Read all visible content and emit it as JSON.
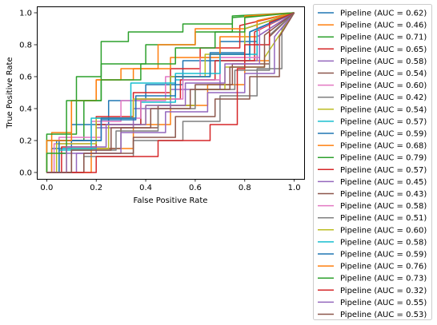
{
  "chart_data": {
    "type": "line",
    "xlabel": "False Positive Rate",
    "ylabel": "True Positive Rate",
    "xlim": [
      -0.04,
      1.04
    ],
    "ylim": [
      -0.04,
      1.04
    ],
    "xticks": [
      "0.0",
      "0.2",
      "0.4",
      "0.6",
      "0.8",
      "1.0"
    ],
    "yticks": [
      "0.0",
      "0.2",
      "0.4",
      "0.6",
      "0.8",
      "1.0"
    ],
    "grid": false,
    "legend_position": "outside-right",
    "series": [
      {
        "name": "Pipeline (AUC = 0.62)",
        "color": "#1f77b4",
        "x": [
          0,
          0.02,
          0.02,
          0.1,
          0.1,
          0.25,
          0.25,
          0.4,
          0.4,
          0.55,
          0.55,
          0.7,
          0.7,
          0.85,
          0.85,
          1
        ],
        "y": [
          0,
          0,
          0.15,
          0.15,
          0.3,
          0.3,
          0.45,
          0.45,
          0.55,
          0.55,
          0.7,
          0.7,
          0.82,
          0.82,
          0.95,
          1
        ]
      },
      {
        "name": "Pipeline (AUC = 0.46)",
        "color": "#ff7f0e",
        "x": [
          0,
          0.18,
          0.18,
          0.35,
          0.35,
          0.5,
          0.5,
          0.65,
          0.65,
          0.8,
          0.8,
          0.9,
          0.9,
          1
        ],
        "y": [
          0,
          0,
          0.15,
          0.15,
          0.3,
          0.3,
          0.42,
          0.42,
          0.55,
          0.55,
          0.7,
          0.7,
          0.9,
          1
        ]
      },
      {
        "name": "Pipeline (AUC = 0.71)",
        "color": "#2ca02c",
        "x": [
          0,
          0,
          0.15,
          0.15,
          0.22,
          0.22,
          0.4,
          0.4,
          0.6,
          0.6,
          0.75,
          0.75,
          1
        ],
        "y": [
          0,
          0.2,
          0.2,
          0.45,
          0.45,
          0.68,
          0.68,
          0.8,
          0.8,
          0.88,
          0.88,
          0.97,
          1
        ]
      },
      {
        "name": "Pipeline (AUC = 0.65)",
        "color": "#d62728",
        "x": [
          0,
          0.05,
          0.05,
          0.2,
          0.2,
          0.35,
          0.35,
          0.5,
          0.5,
          0.62,
          0.62,
          0.78,
          0.78,
          1
        ],
        "y": [
          0,
          0,
          0.2,
          0.2,
          0.35,
          0.35,
          0.5,
          0.5,
          0.65,
          0.65,
          0.78,
          0.78,
          0.92,
          1
        ]
      },
      {
        "name": "Pipeline (AUC = 0.58)",
        "color": "#9467bd",
        "x": [
          0,
          0.05,
          0.05,
          0.2,
          0.2,
          0.35,
          0.35,
          0.5,
          0.5,
          0.7,
          0.7,
          0.85,
          0.85,
          1
        ],
        "y": [
          0,
          0,
          0.12,
          0.12,
          0.28,
          0.28,
          0.4,
          0.4,
          0.52,
          0.52,
          0.7,
          0.7,
          0.85,
          1
        ]
      },
      {
        "name": "Pipeline (AUC = 0.54)",
        "color": "#8c564b",
        "x": [
          0,
          0.1,
          0.1,
          0.3,
          0.3,
          0.45,
          0.45,
          0.6,
          0.6,
          0.75,
          0.75,
          0.9,
          0.9,
          1
        ],
        "y": [
          0,
          0,
          0.15,
          0.15,
          0.28,
          0.28,
          0.42,
          0.42,
          0.55,
          0.55,
          0.68,
          0.68,
          0.85,
          1
        ]
      },
      {
        "name": "Pipeline (AUC = 0.60)",
        "color": "#e377c2",
        "x": [
          0,
          0.03,
          0.03,
          0.18,
          0.18,
          0.3,
          0.3,
          0.48,
          0.48,
          0.62,
          0.62,
          0.8,
          0.8,
          1
        ],
        "y": [
          0,
          0,
          0.18,
          0.18,
          0.32,
          0.32,
          0.45,
          0.45,
          0.6,
          0.6,
          0.72,
          0.72,
          0.9,
          1
        ]
      },
      {
        "name": "Pipeline (AUC = 0.42)",
        "color": "#7f7f7f",
        "x": [
          0,
          0.15,
          0.15,
          0.35,
          0.35,
          0.55,
          0.55,
          0.7,
          0.7,
          0.85,
          0.85,
          0.95,
          0.95,
          1
        ],
        "y": [
          0,
          0,
          0.1,
          0.1,
          0.2,
          0.2,
          0.32,
          0.32,
          0.48,
          0.48,
          0.65,
          0.65,
          0.9,
          1
        ]
      },
      {
        "name": "Pipeline (AUC = 0.54)",
        "color": "#bcbd22",
        "x": [
          0,
          0.08,
          0.08,
          0.25,
          0.25,
          0.4,
          0.4,
          0.6,
          0.6,
          0.72,
          0.72,
          0.88,
          0.88,
          1
        ],
        "y": [
          0,
          0,
          0.15,
          0.15,
          0.3,
          0.3,
          0.42,
          0.42,
          0.52,
          0.52,
          0.66,
          0.66,
          0.72,
          1
        ]
      },
      {
        "name": "Pipeline (AUC = 0.57)",
        "color": "#17becf",
        "x": [
          0,
          0.05,
          0.05,
          0.2,
          0.2,
          0.38,
          0.38,
          0.52,
          0.52,
          0.68,
          0.68,
          0.82,
          0.82,
          1
        ],
        "y": [
          0,
          0,
          0.15,
          0.15,
          0.3,
          0.3,
          0.44,
          0.44,
          0.58,
          0.58,
          0.7,
          0.7,
          0.88,
          1
        ]
      },
      {
        "name": "Pipeline (AUC = 0.59)",
        "color": "#1f77b4",
        "x": [
          0,
          0.04,
          0.04,
          0.22,
          0.22,
          0.36,
          0.36,
          0.5,
          0.5,
          0.66,
          0.66,
          0.8,
          0.8,
          1
        ],
        "y": [
          0,
          0,
          0.2,
          0.2,
          0.33,
          0.33,
          0.46,
          0.46,
          0.6,
          0.6,
          0.75,
          0.75,
          0.9,
          1
        ]
      },
      {
        "name": "Pipeline (AUC = 0.68)",
        "color": "#ff7f0e",
        "x": [
          0,
          0.02,
          0.02,
          0.1,
          0.1,
          0.2,
          0.2,
          0.35,
          0.35,
          0.5,
          0.5,
          0.7,
          0.7,
          0.85,
          0.85,
          1
        ],
        "y": [
          0,
          0,
          0.25,
          0.25,
          0.45,
          0.45,
          0.58,
          0.58,
          0.65,
          0.65,
          0.72,
          0.72,
          0.85,
          0.85,
          0.95,
          1
        ]
      },
      {
        "name": "Pipeline (AUC = 0.79)",
        "color": "#2ca02c",
        "x": [
          0,
          0,
          0.12,
          0.12,
          0.22,
          0.22,
          0.33,
          0.33,
          0.55,
          0.55,
          0.75,
          0.75,
          1
        ],
        "y": [
          0,
          0.24,
          0.24,
          0.6,
          0.6,
          0.82,
          0.82,
          0.88,
          0.88,
          0.93,
          0.93,
          0.98,
          1
        ]
      },
      {
        "name": "Pipeline (AUC = 0.57)",
        "color": "#d62728",
        "x": [
          0,
          0.06,
          0.06,
          0.2,
          0.2,
          0.38,
          0.38,
          0.54,
          0.54,
          0.68,
          0.68,
          0.84,
          0.84,
          1
        ],
        "y": [
          0,
          0,
          0.16,
          0.16,
          0.3,
          0.3,
          0.46,
          0.46,
          0.58,
          0.58,
          0.7,
          0.7,
          0.88,
          1
        ]
      },
      {
        "name": "Pipeline (AUC = 0.45)",
        "color": "#9467bd",
        "x": [
          0,
          0.12,
          0.12,
          0.3,
          0.3,
          0.48,
          0.48,
          0.65,
          0.65,
          0.8,
          0.8,
          0.92,
          0.92,
          1
        ],
        "y": [
          0,
          0,
          0.12,
          0.12,
          0.25,
          0.25,
          0.38,
          0.38,
          0.5,
          0.5,
          0.62,
          0.62,
          0.85,
          1
        ]
      },
      {
        "name": "Pipeline (AUC = 0.43)",
        "color": "#8c564b",
        "x": [
          0,
          0.15,
          0.15,
          0.35,
          0.35,
          0.52,
          0.52,
          0.68,
          0.68,
          0.82,
          0.82,
          0.94,
          0.94,
          1
        ],
        "y": [
          0,
          0,
          0.12,
          0.12,
          0.22,
          0.22,
          0.35,
          0.35,
          0.46,
          0.46,
          0.6,
          0.6,
          0.85,
          1
        ]
      },
      {
        "name": "Pipeline (AUC = 0.58)",
        "color": "#e377c2",
        "x": [
          0,
          0.05,
          0.05,
          0.22,
          0.22,
          0.38,
          0.38,
          0.55,
          0.55,
          0.7,
          0.7,
          0.86,
          0.86,
          1
        ],
        "y": [
          0,
          0,
          0.22,
          0.22,
          0.34,
          0.34,
          0.46,
          0.46,
          0.58,
          0.58,
          0.72,
          0.72,
          0.9,
          1
        ]
      },
      {
        "name": "Pipeline (AUC = 0.51)",
        "color": "#7f7f7f",
        "x": [
          0,
          0.1,
          0.1,
          0.28,
          0.28,
          0.45,
          0.45,
          0.6,
          0.6,
          0.76,
          0.76,
          0.9,
          0.9,
          1
        ],
        "y": [
          0,
          0,
          0.14,
          0.14,
          0.26,
          0.26,
          0.4,
          0.4,
          0.52,
          0.52,
          0.64,
          0.64,
          0.86,
          1
        ]
      },
      {
        "name": "Pipeline (AUC = 0.60)",
        "color": "#bcbd22",
        "x": [
          0,
          0.04,
          0.04,
          0.2,
          0.2,
          0.35,
          0.35,
          0.5,
          0.5,
          0.64,
          0.64,
          0.8,
          0.8,
          1
        ],
        "y": [
          0,
          0,
          0.18,
          0.18,
          0.34,
          0.34,
          0.46,
          0.46,
          0.6,
          0.6,
          0.74,
          0.74,
          0.9,
          1
        ]
      },
      {
        "name": "Pipeline (AUC = 0.58)",
        "color": "#17becf",
        "x": [
          0,
          0.05,
          0.05,
          0.18,
          0.18,
          0.34,
          0.34,
          0.52,
          0.52,
          0.7,
          0.7,
          0.85,
          0.85,
          1
        ],
        "y": [
          0,
          0,
          0.14,
          0.14,
          0.34,
          0.34,
          0.56,
          0.56,
          0.62,
          0.62,
          0.74,
          0.74,
          0.9,
          1
        ]
      },
      {
        "name": "Pipeline (AUC = 0.59)",
        "color": "#1f77b4",
        "x": [
          0,
          0.05,
          0.05,
          0.22,
          0.22,
          0.36,
          0.36,
          0.52,
          0.52,
          0.66,
          0.66,
          0.82,
          0.82,
          1
        ],
        "y": [
          0,
          0,
          0.2,
          0.2,
          0.34,
          0.34,
          0.48,
          0.48,
          0.6,
          0.6,
          0.74,
          0.74,
          0.88,
          1
        ]
      },
      {
        "name": "Pipeline (AUC = 0.76)",
        "color": "#ff7f0e",
        "x": [
          0,
          0,
          0.1,
          0.1,
          0.2,
          0.2,
          0.3,
          0.3,
          0.45,
          0.45,
          0.6,
          0.6,
          0.8,
          0.8,
          1
        ],
        "y": [
          0,
          0.2,
          0.2,
          0.45,
          0.45,
          0.58,
          0.58,
          0.65,
          0.65,
          0.8,
          0.8,
          0.9,
          0.9,
          0.98,
          1
        ]
      },
      {
        "name": "Pipeline (AUC = 0.73)",
        "color": "#2ca02c",
        "x": [
          0,
          0,
          0.08,
          0.08,
          0.22,
          0.22,
          0.38,
          0.38,
          0.52,
          0.52,
          0.68,
          0.68,
          0.8,
          0.8,
          1
        ],
        "y": [
          0,
          0.12,
          0.12,
          0.45,
          0.45,
          0.58,
          0.58,
          0.68,
          0.68,
          0.78,
          0.78,
          0.88,
          0.88,
          0.97,
          1
        ]
      },
      {
        "name": "Pipeline (AUC = 0.32)",
        "color": "#d62728",
        "x": [
          0,
          0.2,
          0.2,
          0.45,
          0.45,
          0.66,
          0.66,
          0.77,
          0.77,
          0.8,
          0.8,
          0.9,
          0.9,
          1
        ],
        "y": [
          0,
          0,
          0.1,
          0.1,
          0.2,
          0.2,
          0.3,
          0.3,
          0.65,
          0.65,
          0.8,
          0.8,
          0.94,
          1
        ]
      },
      {
        "name": "Pipeline (AUC = 0.55)",
        "color": "#9467bd",
        "x": [
          0,
          0.08,
          0.08,
          0.24,
          0.24,
          0.4,
          0.4,
          0.56,
          0.56,
          0.72,
          0.72,
          0.86,
          0.86,
          1
        ],
        "y": [
          0,
          0,
          0.16,
          0.16,
          0.3,
          0.3,
          0.42,
          0.42,
          0.56,
          0.56,
          0.68,
          0.68,
          0.86,
          1
        ]
      },
      {
        "name": "Pipeline (AUC = 0.53)",
        "color": "#8c564b",
        "x": [
          0,
          0.1,
          0.1,
          0.26,
          0.26,
          0.42,
          0.42,
          0.58,
          0.58,
          0.74,
          0.74,
          0.88,
          0.88,
          1
        ],
        "y": [
          0,
          0,
          0.14,
          0.14,
          0.28,
          0.28,
          0.4,
          0.4,
          0.52,
          0.52,
          0.66,
          0.66,
          0.86,
          1
        ]
      }
    ]
  }
}
